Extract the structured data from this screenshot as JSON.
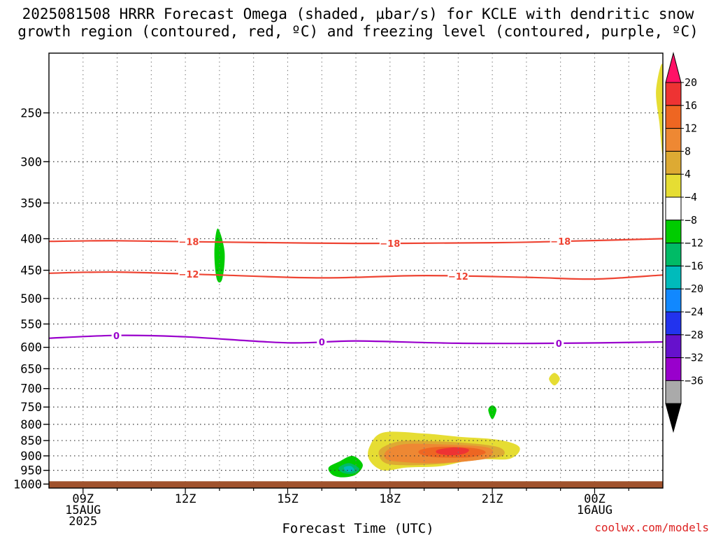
{
  "title": "2025081508 HRRR Forecast Omega (shaded, µbar/s) for KCLE with dendritic snow\ngrowth region (contoured, red, ºC) and freezing level (contoured, purple, ºC)",
  "watermark": "coolwx.com/models",
  "chart_data": {
    "type": "time-height cross section",
    "title": "2025081508 HRRR Forecast Omega (shaded, µbar/s) for KCLE with dendritic snow growth region (contoured, red, ºC) and freezing level (contoured, purple, ºC)",
    "xlabel": "Forecast Time (UTC)",
    "ylabel": "",
    "x_ticks": [
      {
        "hour": 9,
        "label": [
          "09Z",
          "15AUG",
          "2025"
        ]
      },
      {
        "hour": 12,
        "label": [
          "12Z"
        ]
      },
      {
        "hour": 15,
        "label": [
          "15Z"
        ]
      },
      {
        "hour": 18,
        "label": [
          "18Z"
        ]
      },
      {
        "hour": 21,
        "label": [
          "21Z"
        ]
      },
      {
        "hour": 24,
        "label": [
          "00Z",
          "16AUG"
        ]
      }
    ],
    "xlim_hours": [
      8,
      26
    ],
    "y_ticks": [
      250,
      300,
      350,
      400,
      450,
      500,
      550,
      600,
      650,
      700,
      750,
      800,
      850,
      900,
      950,
      1000
    ],
    "ylim_hPa": [
      1015,
      200
    ],
    "grid": true,
    "colorbar": {
      "labels": [
        "20",
        "16",
        "12",
        "8",
        "4",
        "−4",
        "−8",
        "−12",
        "−16",
        "−20",
        "−24",
        "−28",
        "−32",
        "−36"
      ],
      "colors": [
        "#ff1166",
        "#ee3333",
        "#ee6622",
        "#ee8833",
        "#ddaa33",
        "#e6dd33",
        "#ffffff",
        "#00cc00",
        "#00bb66",
        "#00bbbb",
        "#1188ff",
        "#2233ee",
        "#6611cc",
        "#9900cc",
        "#aaaaaa",
        "#000000"
      ]
    },
    "contours": [
      {
        "kind": "dendritic",
        "value": -18,
        "label": "−18",
        "color": "#ee4433",
        "points": [
          [
            8,
            404
          ],
          [
            10,
            403
          ],
          [
            13,
            405
          ],
          [
            17,
            407
          ],
          [
            21,
            406
          ],
          [
            23,
            404
          ],
          [
            26,
            400
          ]
        ],
        "label_hours": [
          12.1,
          18,
          23
        ]
      },
      {
        "kind": "dendritic",
        "value": -12,
        "label": "−12",
        "color": "#ee4433",
        "points": [
          [
            8,
            455
          ],
          [
            10,
            453
          ],
          [
            13,
            458
          ],
          [
            16,
            463
          ],
          [
            19,
            459
          ],
          [
            22,
            462
          ],
          [
            24,
            465
          ],
          [
            26,
            458
          ]
        ],
        "label_hours": [
          12.1,
          20
        ]
      },
      {
        "kind": "freezing",
        "value": 0,
        "label": "0",
        "color": "#9900cc",
        "points": [
          [
            8,
            580
          ],
          [
            10,
            574
          ],
          [
            12,
            577
          ],
          [
            15,
            590
          ],
          [
            17,
            586
          ],
          [
            20,
            591
          ],
          [
            23,
            591
          ],
          [
            26,
            588
          ]
        ],
        "label_hours": [
          9.98,
          16,
          22.95
        ]
      }
    ],
    "omega_regions": [
      {
        "color": "#e6dd33",
        "value_range": [
          4,
          8
        ],
        "points": [
          [
            26,
            210
          ],
          [
            25.8,
            230
          ],
          [
            25.9,
            260
          ],
          [
            26,
            290
          ]
        ]
      },
      {
        "color": "#00cc00",
        "value_range": [
          -8,
          -4
        ],
        "points": [
          [
            12.95,
            385
          ],
          [
            13.15,
            420
          ],
          [
            13.08,
            465
          ],
          [
            12.92,
            465
          ],
          [
            12.85,
            420
          ]
        ]
      },
      {
        "color": "#e6dd33",
        "value_range": [
          4,
          8
        ],
        "points": [
          [
            22.82,
            660
          ],
          [
            22.98,
            675
          ],
          [
            22.82,
            692
          ],
          [
            22.66,
            675
          ]
        ]
      },
      {
        "color": "#00cc00",
        "value_range": [
          -8,
          -4
        ],
        "points": [
          [
            21,
            745
          ],
          [
            21.12,
            758
          ],
          [
            21.0,
            785
          ],
          [
            20.88,
            758
          ]
        ]
      },
      {
        "color": "#e6dd33",
        "value_range": [
          4,
          8
        ],
        "points": [
          [
            17.4,
            870
          ],
          [
            17.8,
            825
          ],
          [
            19,
            828
          ],
          [
            20,
            838
          ],
          [
            21.2,
            848
          ],
          [
            21.8,
            872
          ],
          [
            21.5,
            910
          ],
          [
            20.5,
            912
          ],
          [
            19.5,
            935
          ],
          [
            18.5,
            940
          ],
          [
            17.8,
            950
          ],
          [
            17.4,
            915
          ]
        ]
      },
      {
        "color": "#ddaa33",
        "value_range": [
          8,
          12
        ],
        "points": [
          [
            17.7,
            880
          ],
          [
            18.3,
            852
          ],
          [
            19.2,
            852
          ],
          [
            20.3,
            858
          ],
          [
            21.2,
            872
          ],
          [
            21.3,
            900
          ],
          [
            20.5,
            915
          ],
          [
            19.4,
            928
          ],
          [
            18.3,
            932
          ],
          [
            17.8,
            920
          ]
        ]
      },
      {
        "color": "#ee8833",
        "value_range": [
          12,
          16
        ],
        "points": [
          [
            17.9,
            883
          ],
          [
            18.4,
            862
          ],
          [
            19.4,
            862
          ],
          [
            20.6,
            868
          ],
          [
            21.0,
            880
          ],
          [
            20.9,
            905
          ],
          [
            20.3,
            918
          ],
          [
            19.3,
            925
          ],
          [
            18.5,
            922
          ],
          [
            17.9,
            912
          ]
        ]
      },
      {
        "color": "#ee6622",
        "value_range": [
          12,
          16
        ],
        "points": [
          [
            18.9,
            880
          ],
          [
            19.5,
            870
          ],
          [
            20.5,
            875
          ],
          [
            20.8,
            890
          ],
          [
            20.3,
            905
          ],
          [
            19.4,
            905
          ],
          [
            18.9,
            895
          ]
        ]
      },
      {
        "color": "#ee3333",
        "value_range": [
          16,
          20
        ],
        "points": [
          [
            19.4,
            880
          ],
          [
            19.9,
            872
          ],
          [
            20.3,
            878
          ],
          [
            20.2,
            892
          ],
          [
            19.8,
            898
          ],
          [
            19.4,
            892
          ]
        ]
      },
      {
        "color": "#00cc00",
        "value_range": [
          -8,
          -4
        ],
        "points": [
          [
            16.2,
            940
          ],
          [
            16.5,
            920
          ],
          [
            16.9,
            900
          ],
          [
            17.2,
            930
          ],
          [
            17.0,
            965
          ],
          [
            16.6,
            975
          ],
          [
            16.3,
            965
          ]
        ]
      },
      {
        "color": "#00bb66",
        "value_range": [
          -12,
          -8
        ],
        "points": [
          [
            16.5,
            940
          ],
          [
            16.8,
            925
          ],
          [
            17.1,
            945
          ],
          [
            16.9,
            962
          ],
          [
            16.6,
            958
          ]
        ]
      },
      {
        "color": "#00bbbb",
        "value_range": [
          -16,
          -12
        ],
        "points": [
          [
            16.65,
            940
          ],
          [
            16.85,
            935
          ],
          [
            16.95,
            950
          ],
          [
            16.75,
            955
          ]
        ]
      }
    ],
    "ground": {
      "top_hPa": 1000,
      "color": "#a0522d"
    }
  }
}
